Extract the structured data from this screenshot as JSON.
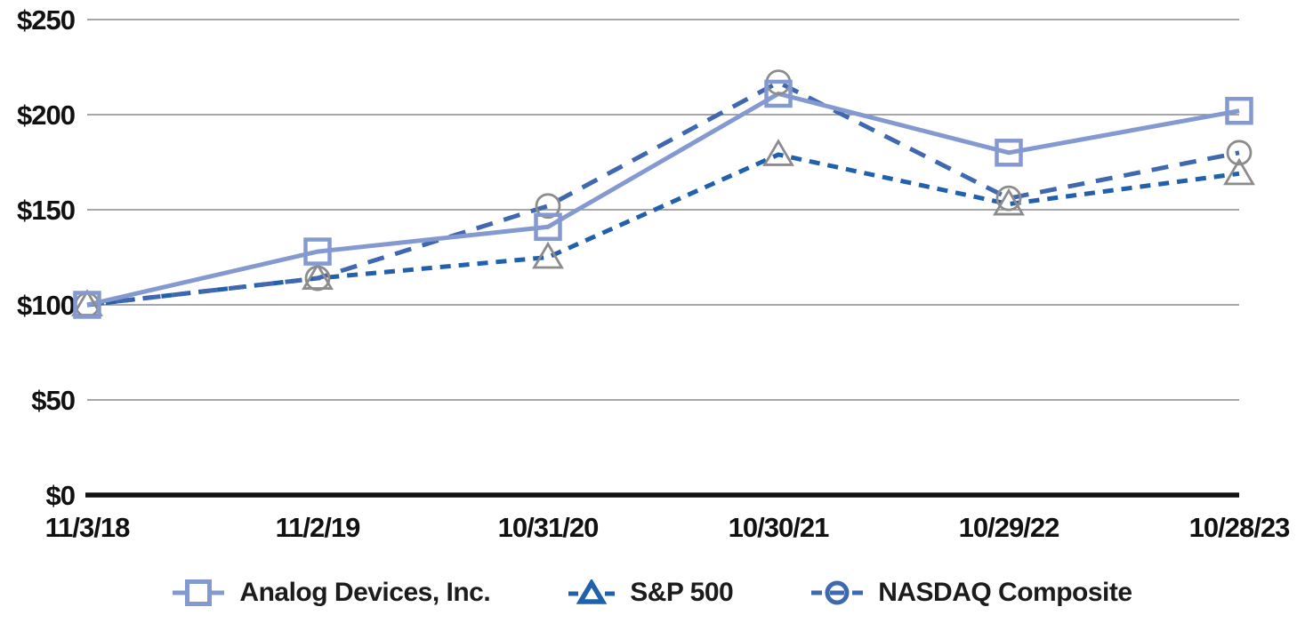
{
  "chart_data": {
    "type": "line",
    "title": "",
    "xlabel": "",
    "ylabel": "",
    "categories": [
      "11/3/18",
      "11/2/19",
      "10/31/20",
      "10/30/21",
      "10/29/22",
      "10/28/23"
    ],
    "y_ticks": [
      {
        "label": "$0",
        "value": 0
      },
      {
        "label": "$50",
        "value": 50
      },
      {
        "label": "$100",
        "value": 100
      },
      {
        "label": "$150",
        "value": 150
      },
      {
        "label": "$200",
        "value": 200
      },
      {
        "label": "$250",
        "value": 250
      }
    ],
    "ylim": [
      0,
      250
    ],
    "grid": "horizontal",
    "legend_position": "bottom",
    "axis_color": "#111111",
    "gridline_color": "#8a8a8a",
    "label_color": "#111111",
    "series": [
      {
        "id": "analog-devices",
        "name": "Analog Devices, Inc.",
        "values": [
          100,
          128,
          141,
          211,
          180,
          202
        ],
        "color": "#8599d1",
        "line_style": "solid",
        "marker": "square",
        "marker_color": "#8599d1"
      },
      {
        "id": "sp500",
        "name": "S&P 500",
        "values": [
          100,
          114,
          125,
          179,
          153,
          169
        ],
        "color": "#2060ac",
        "line_style": "dashed-short",
        "marker": "triangle",
        "marker_color": "#8c8c8c"
      },
      {
        "id": "nasdaq",
        "name": "NASDAQ Composite",
        "values": [
          100,
          114,
          152,
          217,
          156,
          180
        ],
        "color": "#4068b0",
        "line_style": "dashed-long",
        "marker": "circle",
        "marker_color": "#8c8c8c"
      }
    ],
    "draw_order": [
      1,
      2,
      0
    ],
    "marker_order": [
      2,
      1,
      0
    ]
  }
}
